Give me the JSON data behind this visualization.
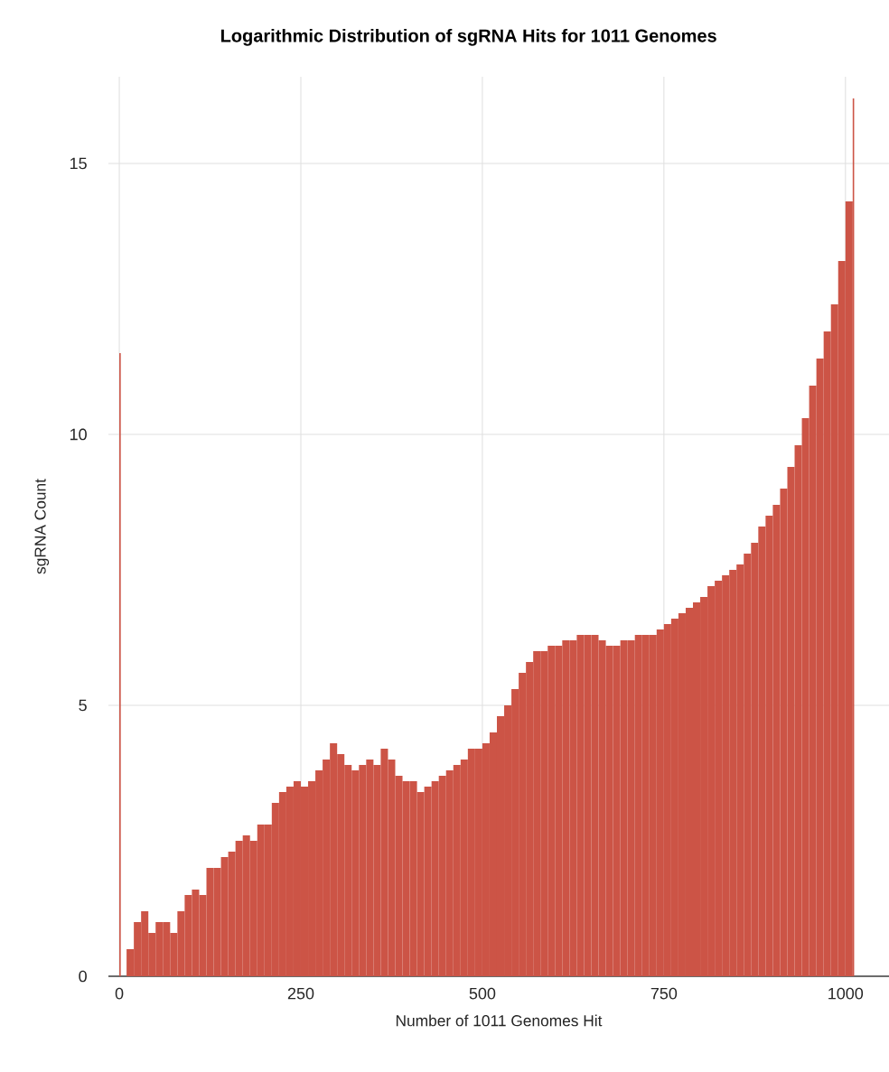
{
  "chart_data": {
    "type": "histogram",
    "title": "Logarithmic Distribution of sgRNA Hits for 1011 Genomes",
    "xlabel": "Number of 1011 Genomes Hit",
    "ylabel": "sgRNA Count",
    "bins": [
      0,
      2,
      10,
      20,
      30,
      40,
      50,
      60,
      70,
      80,
      90,
      100,
      110,
      120,
      130,
      140,
      150,
      160,
      170,
      180,
      190,
      200,
      210,
      220,
      230,
      240,
      250,
      260,
      270,
      280,
      290,
      300,
      310,
      320,
      330,
      340,
      350,
      360,
      370,
      380,
      390,
      400,
      410,
      420,
      430,
      440,
      450,
      460,
      470,
      480,
      490,
      500,
      510,
      520,
      530,
      540,
      550,
      560,
      570,
      580,
      590,
      600,
      610,
      620,
      630,
      640,
      650,
      660,
      670,
      680,
      690,
      700,
      710,
      720,
      730,
      740,
      750,
      760,
      770,
      780,
      790,
      800,
      810,
      820,
      830,
      840,
      850,
      860,
      870,
      880,
      890,
      900,
      910,
      920,
      930,
      940,
      950,
      960,
      970,
      980,
      990,
      1000,
      1010,
      1012
    ],
    "values": [
      11.5,
      0,
      0.5,
      1.0,
      1.2,
      0.8,
      1.0,
      1.0,
      0.8,
      1.2,
      1.5,
      1.6,
      1.5,
      2.0,
      2.0,
      2.2,
      2.3,
      2.5,
      2.6,
      2.5,
      2.8,
      2.8,
      3.2,
      3.4,
      3.5,
      3.6,
      3.5,
      3.6,
      3.8,
      4.0,
      4.3,
      4.1,
      3.9,
      3.8,
      3.9,
      4.0,
      3.9,
      4.2,
      4.0,
      3.7,
      3.6,
      3.6,
      3.4,
      3.5,
      3.6,
      3.7,
      3.8,
      3.9,
      4.0,
      4.2,
      4.2,
      4.3,
      4.5,
      4.8,
      5.0,
      5.3,
      5.6,
      5.8,
      6.0,
      6.0,
      6.1,
      6.1,
      6.2,
      6.2,
      6.3,
      6.3,
      6.3,
      6.2,
      6.1,
      6.1,
      6.2,
      6.2,
      6.3,
      6.3,
      6.3,
      6.4,
      6.5,
      6.6,
      6.7,
      6.8,
      6.9,
      7.0,
      7.2,
      7.3,
      7.4,
      7.5,
      7.6,
      7.8,
      8.0,
      8.3,
      8.5,
      8.7,
      9.0,
      9.4,
      9.8,
      10.3,
      10.9,
      11.4,
      11.9,
      12.4,
      13.2,
      14.3,
      16.2
    ],
    "color": "#cc5446",
    "xlim": [
      -15,
      1060
    ],
    "ylim": [
      0,
      16.6
    ],
    "xticks": [
      0,
      250,
      500,
      750,
      1000
    ],
    "yticks": [
      0,
      5,
      10,
      15
    ],
    "grid": true
  }
}
